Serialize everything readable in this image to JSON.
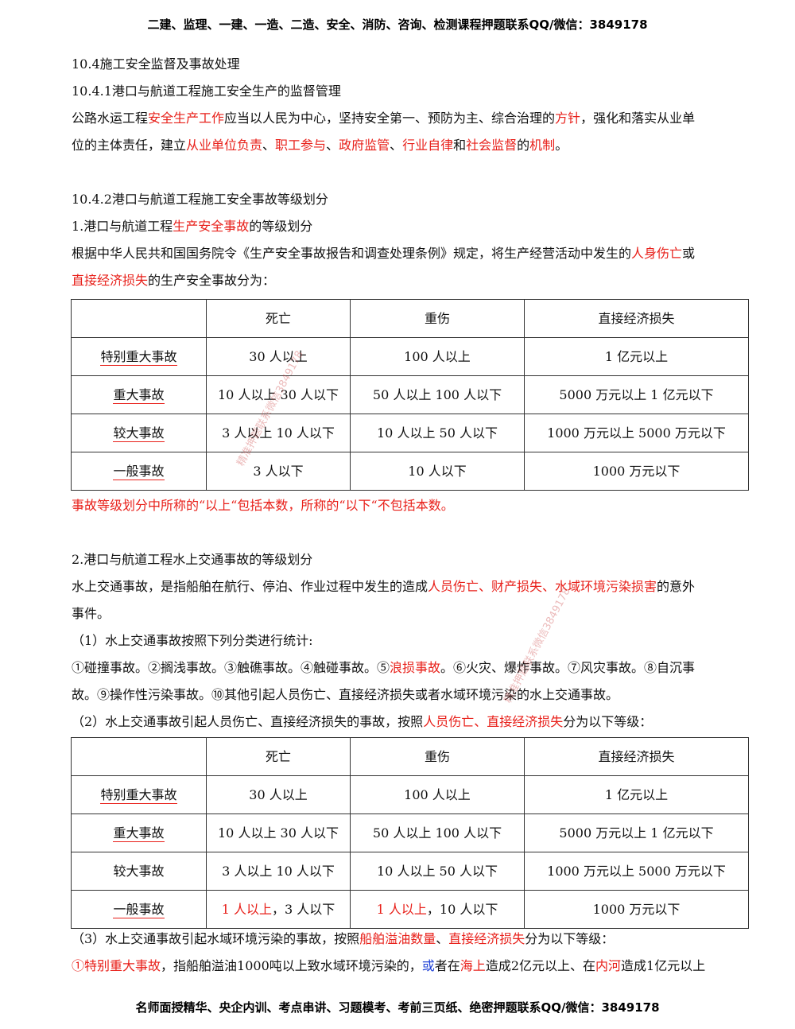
{
  "header": "二建、监理、一建、一造、二造、安全、消防、咨询、检测课程押题联系QQ/微信：3849178",
  "footer": "名师面授精华、央企内训、考点串讲、习题模考、考前三页纸、绝密押题联系QQ/微信：3849178",
  "watermark": "精准押题联系微信3849178",
  "section_104": "10.4施工安全监督及事故处理",
  "section_1041": "10.4.1港口与航道工程施工安全生产的监督管理",
  "p1": {
    "a": "公路水运工程",
    "b": "安全生产工作",
    "c": "应当以人民为中心，坚持安全第一、预防为主、综合治理的",
    "d": "方针",
    "e": "，强化和落实从业单",
    "f": "位的主体责任，建立",
    "g": "从业单位负责",
    "h": "、",
    "i": "职工参与",
    "j": "、",
    "k": "政府监管",
    "l": "、",
    "m": "行业自律",
    "n": "和",
    "o": "社会监督",
    "p": "的",
    "q": "机制",
    "r": "。"
  },
  "section_1042": "10.4.2港口与航道工程施工安全事故等级划分",
  "sub1": {
    "a": "1.港口与航道工程",
    "b": "生产安全事故",
    "c": "的等级划分"
  },
  "p2": {
    "a": "根据中华人民共和国国务院令《生产安全事故报告和调查处理条例》规定，将生产经营活动中发生的",
    "b": "人身伤亡",
    "c": "或",
    "d": "直接经济损失",
    "e": "的生产安全事故分为："
  },
  "table1": {
    "headers": [
      "",
      "死亡",
      "重伤",
      "直接经济损失"
    ],
    "rows": [
      [
        "特别重大事故",
        "30 人以上",
        "100 人以上",
        "1 亿元以上"
      ],
      [
        "重大事故",
        "10 人以上 30 人以下",
        "50 人以上 100 人以下",
        "5000 万元以上 1 亿元以下"
      ],
      [
        "较大事故",
        "3 人以上 10 人以下",
        "10 人以上 50 人以下",
        "1000 万元以上 5000 万元以下"
      ],
      [
        "一般事故",
        "3 人以下",
        "10 人以下",
        "1000 万元以下"
      ]
    ]
  },
  "note1": "事故等级划分中所称的“以上“包括本数，所称的“以下“不包括本数。",
  "sub2": "2.港口与航道工程水上交通事故的等级划分",
  "p3": {
    "a": "水上交通事故，是指船舶在航行、停泊、作业过程中发生的造成",
    "b": "人员伤亡、财产损失、水域环境污染损害",
    "c": "的意外",
    "d": "事件。"
  },
  "p4": "（1）水上交通事故按照下列分类进行统计:",
  "p5": {
    "a": "①碰撞事故。②搁浅事故。③触礁事故。④触碰事故。⑤",
    "b": "浪损事故",
    "c": "。⑥火灾、爆炸事故。⑦风灾事故。⑧自沉事",
    "d": "故。⑨操作性污染事故。⑩其他引起人员伤亡、直接经济损失或者水域环境污染的水上交通事故。"
  },
  "p6": {
    "a": "（2）水上交通事故引起人员伤亡、直接经济损失的事故，按照",
    "b": "人员伤亡、直接经济损失",
    "c": "分为以下等级："
  },
  "table2": {
    "headers": [
      "",
      "死亡",
      "重伤",
      "直接经济损失"
    ],
    "rows": [
      [
        "特别重大事故",
        "30 人以上",
        "100 人以上",
        "1 亿元以上"
      ],
      [
        "重大事故",
        "10 人以上 30 人以下",
        "50 人以上 100 人以下",
        "5000 万元以上 1 亿元以下"
      ],
      [
        "较大事故",
        "3 人以上 10 人以下",
        "10 人以上 50 人以下",
        "1000 万元以上 5000 万元以下"
      ]
    ],
    "last_row": {
      "label": "一般事故",
      "death_red": "1 人以上",
      "death_rest": "，3 人以下",
      "injury_red": "1 人以上",
      "injury_rest": "，10 人以下",
      "loss": "1000 万元以下"
    }
  },
  "p7": {
    "a": "（3）水上交通事故引起水域环境污染的事故，按照",
    "b": "船舶溢油数量",
    "c": "、",
    "d": "直接经济损失",
    "e": "分为以下等级："
  },
  "p8": {
    "a": "①",
    "b": "特别重大事故",
    "c": "，指船舶溢油1000吨以上致水域环境污染的，",
    "d": "或",
    "e": "者在",
    "f": "海上",
    "g": "造成2亿元以上、在",
    "h": "内河",
    "i": "造成1亿元以上"
  }
}
